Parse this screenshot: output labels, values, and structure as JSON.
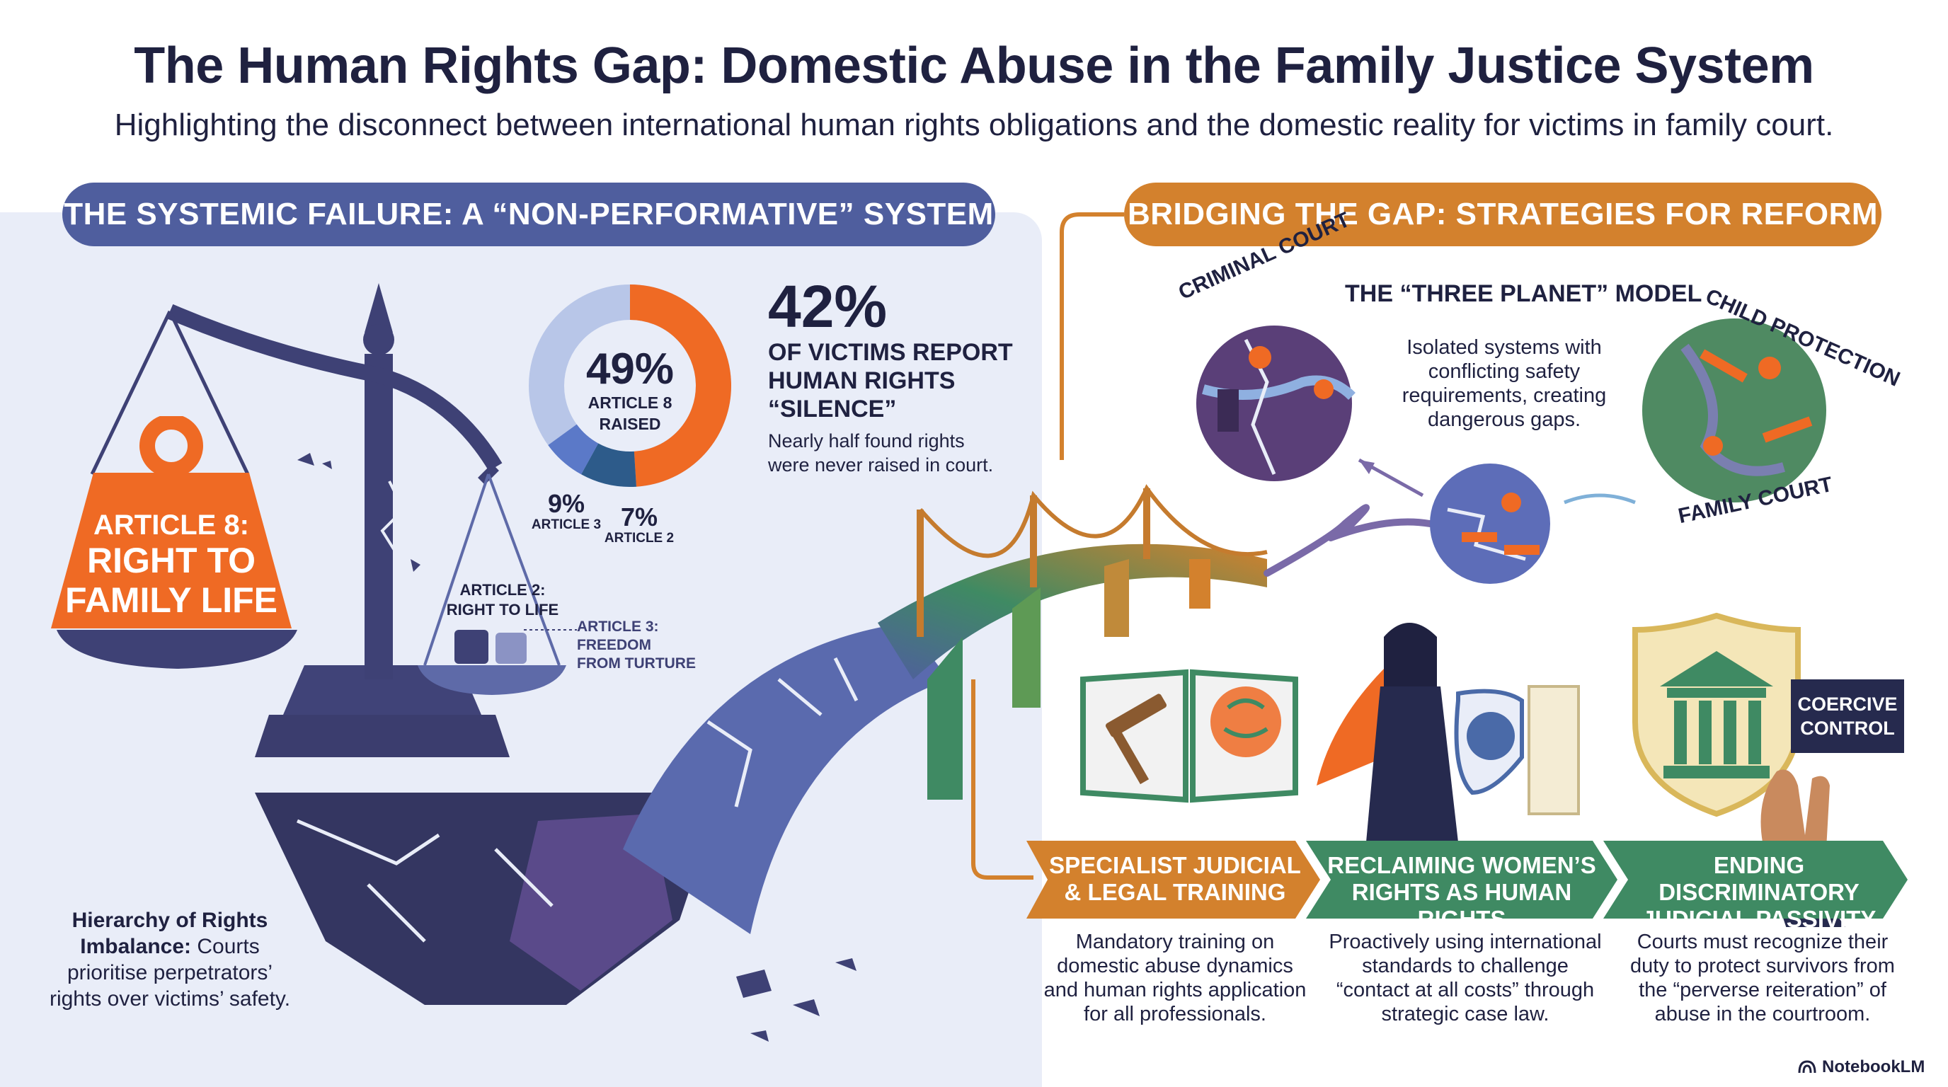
{
  "header": {
    "title": "The Human Rights Gap: Domestic Abuse in the Family Justice System",
    "subtitle": "Highlighting the disconnect between international human rights obligations and the domestic reality for victims in family court."
  },
  "left_section": {
    "heading": "THE SYSTEMIC FAILURE: A “NON-PERFORMATIVE” SYSTEM",
    "weight_label_line1": "ARTICLE 8:",
    "weight_label_line2": "RIGHT TO",
    "weight_label_line3": "FAMILY LIFE",
    "pan_label_line1": "ARTICLE 2:",
    "pan_label_line2": "RIGHT TO LIFE",
    "article3_label_line1": "ARTICLE 3:",
    "article3_label_line2": "FREEDOM",
    "article3_label_line3": "FROM TURTURE",
    "donut": {
      "center_value": "49%",
      "center_label_line1": "ARTICLE 8",
      "center_label_line2": "RAISED",
      "seg3_value": "9%",
      "seg3_label": "ARTICLE 3",
      "seg2_value": "7%",
      "seg2_label": "ARTICLE 2"
    },
    "stat": {
      "value": "42%",
      "line1": "OF VICTIMS REPORT",
      "line2": "HUMAN RIGHTS",
      "line3": "“SILENCE”",
      "desc_line1": "Nearly half found rights",
      "desc_line2": "were never raised in court."
    },
    "hierarchy_title_line1": "Hierarchy of Rights",
    "hierarchy_title_line2": "Imbalance:",
    "hierarchy_rest_line2": " Courts",
    "hierarchy_line3": "prioritise perpetrators’",
    "hierarchy_line4": "rights over victims’ safety."
  },
  "chart_data": {
    "type": "pie",
    "title": "",
    "categories": [
      "ARTICLE 8 RAISED",
      "ARTICLE 3",
      "ARTICLE 2"
    ],
    "values": [
      49,
      9,
      7
    ],
    "unit": "%"
  },
  "right_section": {
    "heading": "BRIDGING THE GAP: STRATEGIES FOR REFORM",
    "model_title": "THE “THREE PLANET” MODEL",
    "model_desc_line1": "Isolated systems with",
    "model_desc_line2": "conflicting safety",
    "model_desc_line3": "requirements, creating",
    "model_desc_line4": "dangerous gaps.",
    "planet_criminal": "CRIMINAL COURT",
    "planet_child": "CHILD PROTECTION",
    "planet_family": "FAMILY COURT",
    "coercive_line1": "COERCIVE",
    "coercive_line2": "CONTROL",
    "strategies": [
      {
        "title_line1": "SPECIALIST JUDICIAL",
        "title_line2": "& LEGAL TRAINING",
        "body": [
          "Mandatory training on",
          "domestic abuse dynamics",
          "and human rights application",
          "for all professionals."
        ],
        "color": "#d3812d"
      },
      {
        "title_line1": "RECLAIMING WOMEN’S",
        "title_line2": "RIGHTS AS HUMAN RIGHTS",
        "body": [
          "Proactively using international",
          "standards to challenge",
          "“contact at all costs” through",
          "strategic case law."
        ],
        "color": "#3f8a63"
      },
      {
        "title_line1": "ENDING DISCRIMINATORY",
        "title_line2": "JUDICIAL PASSIVITY",
        "body": [
          "Courts must recognize their",
          "duty to protect survivors from",
          "the “perverse reiteration” of",
          "abuse in the courtroom."
        ],
        "color": "#3f8a63"
      }
    ]
  },
  "footer": {
    "brand": "NotebookLM"
  },
  "colors": {
    "navy": "#1f2140",
    "slate_blue": "#4f5e9e",
    "orange": "#ef6a24",
    "amber": "#d3812d",
    "green": "#3f8a63",
    "panel": "#e9edf8"
  }
}
